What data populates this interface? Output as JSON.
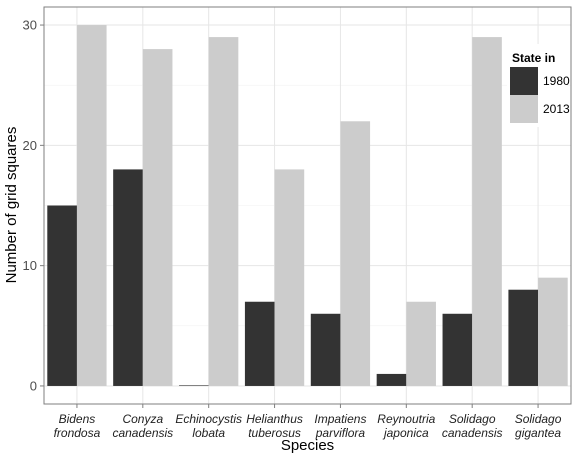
{
  "chart_data": {
    "type": "bar",
    "categories": [
      [
        "Bidens",
        "frondosa"
      ],
      [
        "Conyza",
        "canadensis"
      ],
      [
        "Echinocystis",
        "lobata"
      ],
      [
        "Helianthus",
        "tuberosus"
      ],
      [
        "Impatiens",
        "parviflora"
      ],
      [
        "Reynoutria",
        "japonica"
      ],
      [
        "Solidago",
        "canadensis"
      ],
      [
        "Solidago",
        "gigantea"
      ]
    ],
    "series": [
      {
        "name": "1980",
        "color": "#333333",
        "values": [
          15,
          18,
          0,
          7,
          6,
          1,
          6,
          8
        ]
      },
      {
        "name": "2013",
        "color": "#cccccc",
        "values": [
          30,
          28,
          29,
          18,
          22,
          7,
          29,
          9
        ]
      }
    ],
    "xlabel": "Species",
    "ylabel": "Number of grid squares",
    "yticks": [
      0,
      10,
      20,
      30
    ],
    "ylim": [
      -1.5,
      31.5
    ],
    "legend_title": "State in",
    "legend_position": "top-right",
    "grid": true,
    "panel_background": "#ffffff",
    "grid_color": "#e6e6e6",
    "border_color": "#7f7f7f"
  }
}
